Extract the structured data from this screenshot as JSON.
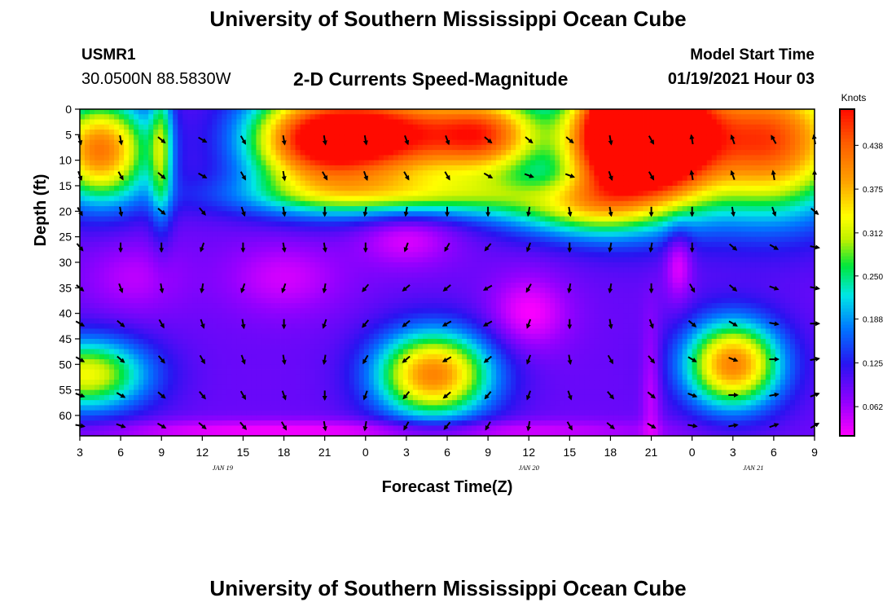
{
  "page": {
    "title_top": "University of Southern Mississippi Ocean Cube",
    "title_bottom": "University of Southern Mississippi Ocean Cube",
    "station_id": "USMR1",
    "station_location": "30.0500N 88.5830W",
    "subtitle": "2-D Currents Speed-Magnitude",
    "model_start_label": "Model Start Time",
    "model_start_time": "01/19/2021 Hour 03"
  },
  "chart_data": {
    "type": "heatmap",
    "title": "2-D Currents Speed-Magnitude",
    "xlabel": "Forecast Time(Z)",
    "ylabel": "Depth (ft)",
    "x_tick_labels": [
      "3",
      "6",
      "9",
      "12",
      "15",
      "18",
      "21",
      "0",
      "3",
      "6",
      "9",
      "12",
      "15",
      "18",
      "21",
      "0",
      "3",
      "6",
      "9"
    ],
    "x_tick_hours": [
      0,
      3,
      6,
      9,
      12,
      15,
      18,
      21,
      24,
      27,
      30,
      33,
      36,
      39,
      42,
      45,
      48,
      51,
      54
    ],
    "date_labels": [
      {
        "label": "JAN 19",
        "hour": 10.5
      },
      {
        "label": "JAN 20",
        "hour": 33
      },
      {
        "label": "JAN 21",
        "hour": 49.5
      }
    ],
    "xlim_hours": [
      0,
      54
    ],
    "y_ticks": [
      0,
      5,
      10,
      15,
      20,
      25,
      30,
      35,
      40,
      45,
      50,
      55,
      60
    ],
    "ylim": [
      0,
      64
    ],
    "colorbar": {
      "label": "Knots",
      "ticks": [
        "0.438",
        "0.375",
        "0.312",
        "0.250",
        "0.188",
        "0.125",
        "0.062"
      ],
      "tick_values": [
        0.438,
        0.375,
        0.312,
        0.25,
        0.188,
        0.125,
        0.062
      ],
      "range": [
        0.02,
        0.49
      ]
    },
    "speed_field_knots": {
      "background": 0.09,
      "features": [
        {
          "hour": 1.5,
          "depth": 8,
          "peak": 0.33,
          "sx": 2.6,
          "sy": 7
        },
        {
          "hour": 0.5,
          "depth": 52,
          "peak": 0.24,
          "sx": 3.2,
          "sy": 5
        },
        {
          "hour": 17,
          "depth": 6,
          "peak": 0.35,
          "sx": 3.5,
          "sy": 7
        },
        {
          "hour": 23,
          "depth": 5,
          "peak": 0.34,
          "sx": 3.8,
          "sy": 7
        },
        {
          "hour": 30,
          "depth": 5,
          "peak": 0.32,
          "sx": 3,
          "sy": 6
        },
        {
          "hour": 26,
          "depth": 52,
          "peak": 0.32,
          "sx": 3,
          "sy": 6
        },
        {
          "hour": 39,
          "depth": 6,
          "peak": 0.43,
          "sx": 2.6,
          "sy": 9
        },
        {
          "hour": 43,
          "depth": 5,
          "peak": 0.43,
          "sx": 2.6,
          "sy": 9
        },
        {
          "hour": 50.5,
          "depth": 6,
          "peak": 0.37,
          "sx": 4.5,
          "sy": 10
        },
        {
          "hour": 48,
          "depth": 50,
          "peak": 0.32,
          "sx": 2.5,
          "sy": 6
        },
        {
          "hour": 41,
          "depth": 1,
          "peak": 0.47,
          "sx": 1.5,
          "sy": 2
        },
        {
          "hour": 6,
          "depth": 8,
          "peak": 0.15,
          "sx": 0.6,
          "sy": 10
        },
        {
          "hour": 24,
          "depth": 17,
          "peak": 0.15,
          "sx": 9,
          "sy": 3
        },
        {
          "hour": 36,
          "depth": 20,
          "peak": 0.14,
          "sx": 4,
          "sy": 4
        },
        {
          "hour": 12,
          "depth": 63,
          "peak": -0.06,
          "sx": 9,
          "sy": 1.5
        },
        {
          "hour": 31,
          "depth": 63,
          "peak": -0.05,
          "sx": 9,
          "sy": 1.5
        },
        {
          "hour": 24,
          "depth": 25,
          "peak": -0.06,
          "sx": 2.5,
          "sy": 4
        },
        {
          "hour": 33,
          "depth": 40,
          "peak": -0.07,
          "sx": 2,
          "sy": 5
        },
        {
          "hour": 44,
          "depth": 30,
          "peak": -0.07,
          "sx": 0.7,
          "sy": 5
        },
        {
          "hour": 42,
          "depth": 55,
          "peak": -0.05,
          "sx": 0.5,
          "sy": 10
        },
        {
          "hour": 15,
          "depth": 33,
          "peak": -0.05,
          "sx": 3,
          "sy": 5
        },
        {
          "hour": 4,
          "depth": 33,
          "peak": -0.04,
          "sx": 2.5,
          "sy": 5
        }
      ]
    },
    "vectors": {
      "hours": [
        0,
        3,
        6,
        9,
        12,
        15,
        18,
        21,
        24,
        27,
        30,
        33,
        36,
        39,
        42,
        45,
        48,
        51,
        54
      ],
      "depths": [
        6,
        13,
        20,
        27,
        35,
        42,
        49,
        56,
        62
      ],
      "angles_deg": [
        [
          75,
          80,
          40,
          30,
          60,
          80,
          80,
          80,
          70,
          70,
          40,
          40,
          40,
          80,
          60,
          260,
          250,
          240,
          260
        ],
        [
          70,
          60,
          40,
          30,
          60,
          80,
          60,
          70,
          60,
          60,
          30,
          20,
          20,
          70,
          60,
          260,
          250,
          260,
          270
        ],
        [
          60,
          80,
          40,
          50,
          70,
          80,
          90,
          100,
          100,
          90,
          90,
          100,
          80,
          80,
          90,
          90,
          80,
          70,
          40
        ],
        [
          50,
          90,
          90,
          110,
          90,
          80,
          80,
          90,
          110,
          120,
          130,
          110,
          90,
          100,
          100,
          90,
          40,
          30,
          10
        ],
        [
          40,
          70,
          80,
          100,
          110,
          110,
          100,
          130,
          140,
          140,
          150,
          120,
          100,
          100,
          90,
          60,
          40,
          20,
          10
        ],
        [
          30,
          40,
          60,
          70,
          80,
          90,
          110,
          130,
          140,
          150,
          150,
          110,
          90,
          80,
          70,
          40,
          30,
          10,
          0
        ],
        [
          30,
          40,
          50,
          60,
          70,
          80,
          100,
          120,
          140,
          150,
          140,
          110,
          80,
          60,
          50,
          30,
          20,
          0,
          350
        ],
        [
          20,
          30,
          40,
          50,
          60,
          70,
          90,
          110,
          130,
          140,
          130,
          110,
          70,
          50,
          40,
          20,
          0,
          350,
          340
        ],
        [
          10,
          20,
          30,
          40,
          50,
          60,
          80,
          100,
          120,
          130,
          120,
          100,
          60,
          40,
          30,
          10,
          350,
          340,
          330
        ]
      ]
    }
  }
}
